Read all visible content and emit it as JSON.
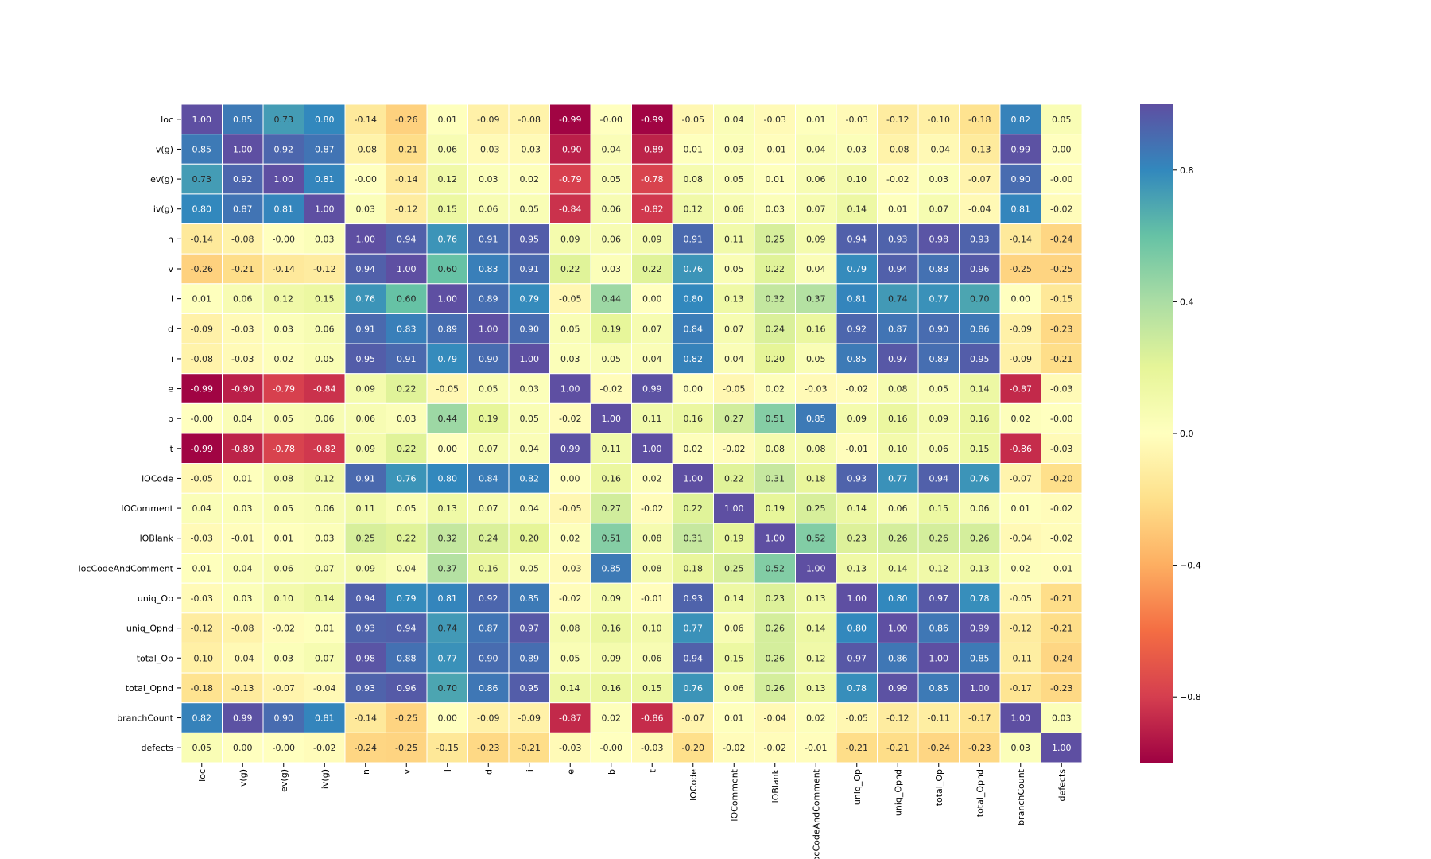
{
  "chart_data": {
    "type": "heatmap",
    "title": "",
    "xlabel": "",
    "ylabel": "",
    "labels": [
      "loc",
      "v(g)",
      "ev(g)",
      "iv(g)",
      "n",
      "v",
      "l",
      "d",
      "i",
      "e",
      "b",
      "t",
      "lOCode",
      "lOComment",
      "lOBlank",
      "locCodeAndComment",
      "uniq_Op",
      "uniq_Opnd",
      "total_Op",
      "total_Opnd",
      "branchCount",
      "defects"
    ],
    "matrix": [
      [
        1.0,
        0.85,
        0.73,
        0.8,
        -0.14,
        -0.26,
        0.01,
        -0.09,
        -0.08,
        -0.99,
        -0.0,
        -0.99,
        -0.05,
        0.04,
        -0.03,
        0.01,
        -0.03,
        -0.12,
        -0.1,
        -0.18,
        0.82,
        0.05
      ],
      [
        0.85,
        1.0,
        0.92,
        0.87,
        -0.08,
        -0.21,
        0.06,
        -0.03,
        -0.03,
        -0.9,
        0.04,
        -0.89,
        0.01,
        0.03,
        -0.01,
        0.04,
        0.03,
        -0.08,
        -0.04,
        -0.13,
        0.99,
        0.0
      ],
      [
        0.73,
        0.92,
        1.0,
        0.81,
        -0.0,
        -0.14,
        0.12,
        0.03,
        0.02,
        -0.79,
        0.05,
        -0.78,
        0.08,
        0.05,
        0.01,
        0.06,
        0.1,
        -0.02,
        0.03,
        -0.07,
        0.9,
        -0.0
      ],
      [
        0.8,
        0.87,
        0.81,
        1.0,
        0.03,
        -0.12,
        0.15,
        0.06,
        0.05,
        -0.84,
        0.06,
        -0.82,
        0.12,
        0.06,
        0.03,
        0.07,
        0.14,
        0.01,
        0.07,
        -0.04,
        0.81,
        -0.02
      ],
      [
        -0.14,
        -0.08,
        -0.0,
        0.03,
        1.0,
        0.94,
        0.76,
        0.91,
        0.95,
        0.09,
        0.06,
        0.09,
        0.91,
        0.11,
        0.25,
        0.09,
        0.94,
        0.93,
        0.98,
        0.93,
        -0.14,
        -0.24
      ],
      [
        -0.26,
        -0.21,
        -0.14,
        -0.12,
        0.94,
        1.0,
        0.6,
        0.83,
        0.91,
        0.22,
        0.03,
        0.22,
        0.76,
        0.05,
        0.22,
        0.04,
        0.79,
        0.94,
        0.88,
        0.96,
        -0.25,
        -0.25
      ],
      [
        0.01,
        0.06,
        0.12,
        0.15,
        0.76,
        0.6,
        1.0,
        0.89,
        0.79,
        -0.05,
        0.44,
        0.0,
        0.8,
        0.13,
        0.32,
        0.37,
        0.81,
        0.74,
        0.77,
        0.7,
        0.0,
        -0.15
      ],
      [
        -0.09,
        -0.03,
        0.03,
        0.06,
        0.91,
        0.83,
        0.89,
        1.0,
        0.9,
        0.05,
        0.19,
        0.07,
        0.84,
        0.07,
        0.24,
        0.16,
        0.92,
        0.87,
        0.9,
        0.86,
        -0.09,
        -0.23
      ],
      [
        -0.08,
        -0.03,
        0.02,
        0.05,
        0.95,
        0.91,
        0.79,
        0.9,
        1.0,
        0.03,
        0.05,
        0.04,
        0.82,
        0.04,
        0.2,
        0.05,
        0.85,
        0.97,
        0.89,
        0.95,
        -0.09,
        -0.21
      ],
      [
        -0.99,
        -0.9,
        -0.79,
        -0.84,
        0.09,
        0.22,
        -0.05,
        0.05,
        0.03,
        1.0,
        -0.02,
        0.99,
        0.0,
        -0.05,
        0.02,
        -0.03,
        -0.02,
        0.08,
        0.05,
        0.14,
        -0.87,
        -0.03
      ],
      [
        -0.0,
        0.04,
        0.05,
        0.06,
        0.06,
        0.03,
        0.44,
        0.19,
        0.05,
        -0.02,
        1.0,
        0.11,
        0.16,
        0.27,
        0.51,
        0.85,
        0.09,
        0.16,
        0.09,
        0.16,
        0.02,
        -0.0
      ],
      [
        -0.99,
        -0.89,
        -0.78,
        -0.82,
        0.09,
        0.22,
        0.0,
        0.07,
        0.04,
        0.99,
        0.11,
        1.0,
        0.02,
        -0.02,
        0.08,
        0.08,
        -0.01,
        0.1,
        0.06,
        0.15,
        -0.86,
        -0.03
      ],
      [
        -0.05,
        0.01,
        0.08,
        0.12,
        0.91,
        0.76,
        0.8,
        0.84,
        0.82,
        0.0,
        0.16,
        0.02,
        1.0,
        0.22,
        0.31,
        0.18,
        0.93,
        0.77,
        0.94,
        0.76,
        -0.07,
        -0.2
      ],
      [
        0.04,
        0.03,
        0.05,
        0.06,
        0.11,
        0.05,
        0.13,
        0.07,
        0.04,
        -0.05,
        0.27,
        -0.02,
        0.22,
        1.0,
        0.19,
        0.25,
        0.14,
        0.06,
        0.15,
        0.06,
        0.01,
        -0.02
      ],
      [
        -0.03,
        -0.01,
        0.01,
        0.03,
        0.25,
        0.22,
        0.32,
        0.24,
        0.2,
        0.02,
        0.51,
        0.08,
        0.31,
        0.19,
        1.0,
        0.52,
        0.23,
        0.26,
        0.26,
        0.26,
        -0.04,
        -0.02
      ],
      [
        0.01,
        0.04,
        0.06,
        0.07,
        0.09,
        0.04,
        0.37,
        0.16,
        0.05,
        -0.03,
        0.85,
        0.08,
        0.18,
        0.25,
        0.52,
        1.0,
        0.13,
        0.14,
        0.12,
        0.13,
        0.02,
        -0.01
      ],
      [
        -0.03,
        0.03,
        0.1,
        0.14,
        0.94,
        0.79,
        0.81,
        0.92,
        0.85,
        -0.02,
        0.09,
        -0.01,
        0.93,
        0.14,
        0.23,
        0.13,
        1.0,
        0.8,
        0.97,
        0.78,
        -0.05,
        -0.21
      ],
      [
        -0.12,
        -0.08,
        -0.02,
        0.01,
        0.93,
        0.94,
        0.74,
        0.87,
        0.97,
        0.08,
        0.16,
        0.1,
        0.77,
        0.06,
        0.26,
        0.14,
        0.8,
        1.0,
        0.86,
        0.99,
        -0.12,
        -0.21
      ],
      [
        -0.1,
        -0.04,
        0.03,
        0.07,
        0.98,
        0.88,
        0.77,
        0.9,
        0.89,
        0.05,
        0.09,
        0.06,
        0.94,
        0.15,
        0.26,
        0.12,
        0.97,
        0.86,
        1.0,
        0.85,
        -0.11,
        -0.24
      ],
      [
        -0.18,
        -0.13,
        -0.07,
        -0.04,
        0.93,
        0.96,
        0.7,
        0.86,
        0.95,
        0.14,
        0.16,
        0.15,
        0.76,
        0.06,
        0.26,
        0.13,
        0.78,
        0.99,
        0.85,
        1.0,
        -0.17,
        -0.23
      ],
      [
        0.82,
        0.99,
        0.9,
        0.81,
        -0.14,
        -0.25,
        0.0,
        -0.09,
        -0.09,
        -0.87,
        0.02,
        -0.86,
        -0.07,
        0.01,
        -0.04,
        0.02,
        -0.05,
        -0.12,
        -0.11,
        -0.17,
        1.0,
        0.03
      ],
      [
        0.05,
        0.0,
        -0.0,
        -0.02,
        -0.24,
        -0.25,
        -0.15,
        -0.23,
        -0.21,
        -0.03,
        -0.0,
        -0.03,
        -0.2,
        -0.02,
        -0.02,
        -0.01,
        -0.21,
        -0.21,
        -0.24,
        -0.23,
        0.03,
        1.0
      ]
    ],
    "value_format": "2 decimals",
    "colormap": "Spectral",
    "colormap_stops": [
      "#9e0142",
      "#d53e4f",
      "#f46d43",
      "#fdae61",
      "#fee08b",
      "#ffffbf",
      "#e6f598",
      "#abdda4",
      "#66c2a5",
      "#3288bd",
      "#5e4fa2"
    ],
    "vmin": -1.0,
    "vmax": 1.0,
    "colorbar_ticks": [
      0.8,
      0.4,
      0.0,
      -0.4,
      -0.8
    ],
    "colorbar_tick_labels": [
      "0.8",
      "0.4",
      "0.0",
      "−0.4",
      "−0.8"
    ],
    "grid": false,
    "cell_separator_color": "#ffffff"
  }
}
